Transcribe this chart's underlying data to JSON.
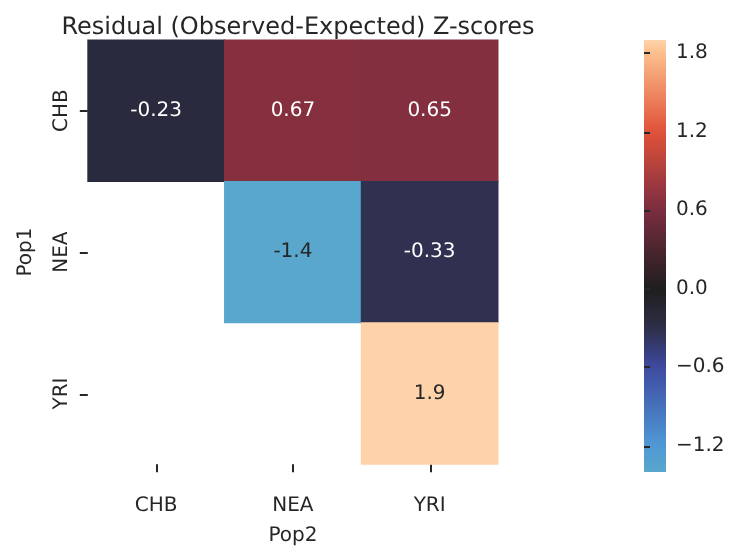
{
  "chart_data": {
    "type": "heatmap",
    "title": "Residual (Observed-Expected) Z-scores",
    "xlabel": "Pop2",
    "ylabel": "Pop1",
    "categories": [
      "CHB",
      "NEA",
      "YRI"
    ],
    "y_categories": [
      "CHB",
      "NEA",
      "YRI"
    ],
    "cells": [
      [
        -0.23,
        0.67,
        0.65
      ],
      [
        null,
        -1.4,
        -0.33
      ],
      [
        null,
        null,
        1.9
      ]
    ],
    "data_labels": true,
    "clim": [
      -1.4,
      1.9
    ],
    "cticks": [
      {
        "value": -1.2,
        "label": "−1.2"
      },
      {
        "value": -0.6,
        "label": "−0.6"
      },
      {
        "value": 0,
        "label": "0.0"
      },
      {
        "value": 0.6,
        "label": "0.6"
      },
      {
        "value": 1.2,
        "label": "1.2"
      },
      {
        "value": 1.8,
        "label": "1.8"
      }
    ]
  }
}
